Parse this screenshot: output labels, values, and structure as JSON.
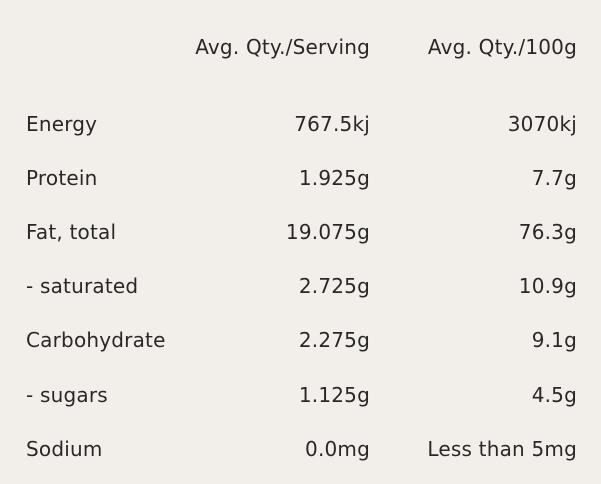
{
  "table": {
    "headers": {
      "serving": "Avg. Qty./Serving",
      "per100": "Avg. Qty./100g"
    },
    "rows": [
      {
        "label": "Energy",
        "serving": "767.5kj",
        "per100": "3070kj"
      },
      {
        "label": "Protein",
        "serving": "1.925g",
        "per100": "7.7g"
      },
      {
        "label": "Fat, total",
        "serving": "19.075g",
        "per100": "76.3g"
      },
      {
        "label": "- saturated",
        "serving": "2.725g",
        "per100": "10.9g"
      },
      {
        "label": "Carbohydrate",
        "serving": "2.275g",
        "per100": "9.1g"
      },
      {
        "label": "- sugars",
        "serving": "1.125g",
        "per100": "4.5g"
      },
      {
        "label": "Sodium",
        "serving": "0.0mg",
        "per100": "Less than 5mg"
      }
    ]
  }
}
